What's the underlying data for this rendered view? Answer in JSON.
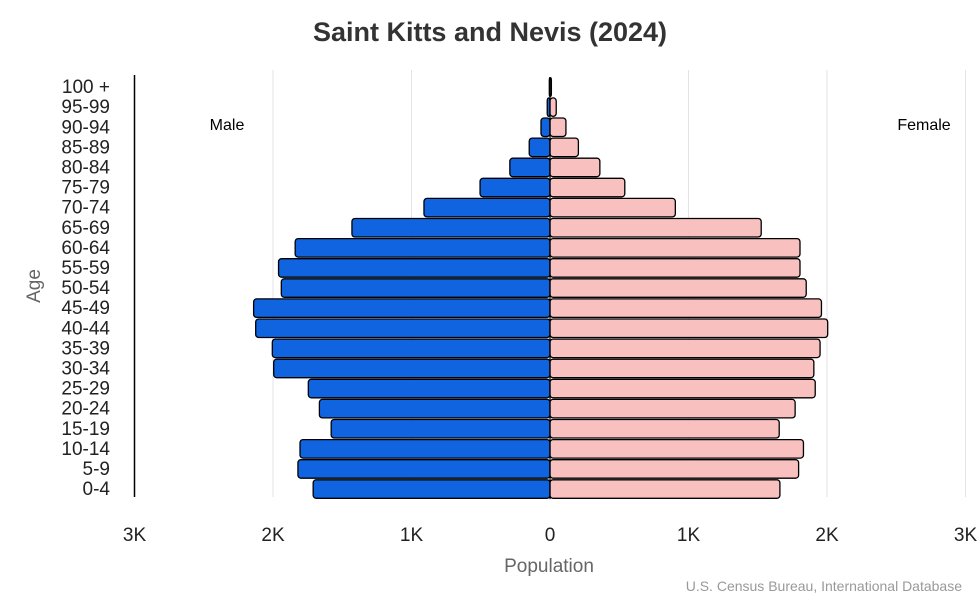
{
  "chart_data": {
    "type": "bar",
    "orientation": "horizontal-pyramid",
    "title": "Saint Kitts and Nevis (2024)",
    "xlabel": "Population",
    "ylabel": "Age",
    "xlim": [
      -3000,
      3000
    ],
    "x_tick_labels": [
      "3K",
      "2K",
      "1K",
      "0",
      "1K",
      "2K",
      "3K"
    ],
    "x_tick_values": [
      -3000,
      -2000,
      -1000,
      0,
      1000,
      2000,
      3000
    ],
    "grid": "vertical",
    "categories": [
      "100 +",
      "95-99",
      "90-94",
      "85-89",
      "80-84",
      "75-79",
      "70-74",
      "65-69",
      "60-64",
      "55-59",
      "50-54",
      "45-49",
      "40-44",
      "35-39",
      "30-34",
      "25-29",
      "20-24",
      "15-19",
      "10-14",
      "5-9",
      "0-4"
    ],
    "series": [
      {
        "name": "Male",
        "color": "#1064e0",
        "values": [
          5,
          20,
          65,
          150,
          290,
          505,
          910,
          1430,
          1840,
          1960,
          1940,
          2140,
          2125,
          2005,
          1995,
          1745,
          1665,
          1580,
          1805,
          1820,
          1710
        ]
      },
      {
        "name": "Female",
        "color": "#f9c0c0",
        "values": [
          10,
          45,
          115,
          205,
          360,
          540,
          905,
          1525,
          1805,
          1805,
          1850,
          1960,
          2005,
          1950,
          1905,
          1915,
          1770,
          1655,
          1830,
          1795,
          1660
        ]
      }
    ],
    "source": "U.S. Census Bureau, International Database"
  }
}
